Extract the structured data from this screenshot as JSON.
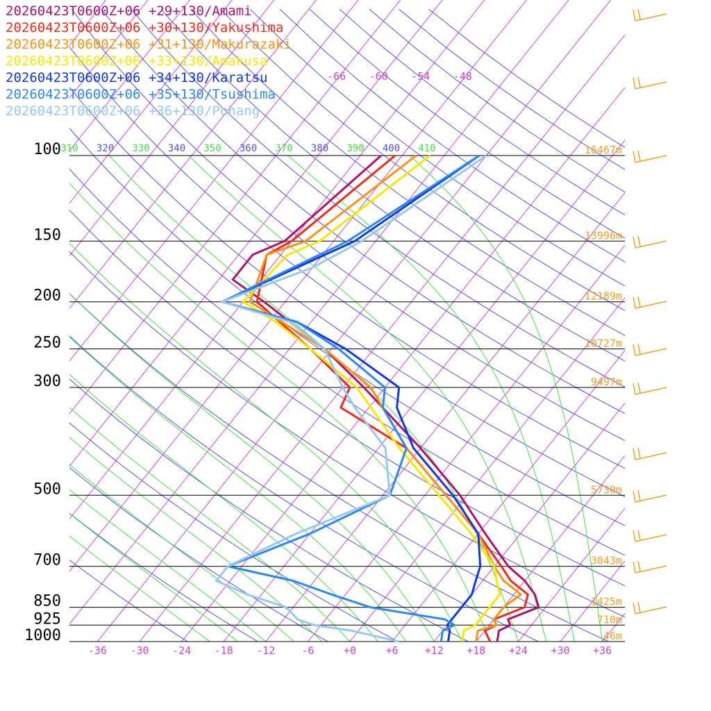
{
  "chart_data": {
    "type": "line",
    "title": "",
    "xlabel": "",
    "ylabel": "",
    "x_units": "°C",
    "y_units": "hPa",
    "y_scale": "log",
    "xlim": [
      -40,
      40
    ],
    "ylim": [
      1000,
      100
    ],
    "x_ticks": [
      "-36",
      "-30",
      "-24",
      "-18",
      "-12",
      "-6",
      "+0",
      "+6",
      "+12",
      "+18",
      "+24",
      "+30",
      "+36"
    ],
    "pressure_levels": [
      {
        "p": 100,
        "label": "100",
        "height": "16467m"
      },
      {
        "p": 150,
        "label": "150",
        "height": "13996m"
      },
      {
        "p": 200,
        "label": "200",
        "height": "12189m"
      },
      {
        "p": 250,
        "label": "250",
        "height": "10727m"
      },
      {
        "p": 300,
        "label": "300",
        "height": "9497m"
      },
      {
        "p": 500,
        "label": "500",
        "height": "5730m"
      },
      {
        "p": 700,
        "label": "700",
        "height": "3043m"
      },
      {
        "p": 850,
        "label": "850",
        "height": "1425m"
      },
      {
        "p": 925,
        "label": "925",
        "height": "710m"
      },
      {
        "p": 1000,
        "label": "1000",
        "height": "46m"
      }
    ],
    "isotherm_labels": [
      "-66",
      "-60",
      "-54",
      "-48"
    ],
    "theta_labels": [
      "310",
      "320",
      "330",
      "340",
      "350",
      "360",
      "370",
      "380",
      "390",
      "400",
      "410"
    ],
    "legend_placement": "top-left",
    "series": [
      {
        "name": "20260423T0600Z+06 +29+130/Amami",
        "color": "#b0106e",
        "points": [
          [
            1000,
            21
          ],
          [
            950,
            20
          ],
          [
            925,
            21
          ],
          [
            900,
            20
          ],
          [
            850,
            23
          ],
          [
            800,
            21
          ],
          [
            750,
            18
          ],
          [
            700,
            14
          ],
          [
            600,
            7
          ],
          [
            500,
            -1
          ],
          [
            400,
            -12
          ],
          [
            300,
            -27
          ],
          [
            250,
            -37
          ],
          [
            200,
            -51
          ],
          [
            180,
            -58
          ],
          [
            160,
            -58
          ],
          [
            150,
            -55
          ],
          [
            100,
            -51
          ]
        ]
      },
      {
        "name": "20260423T0600Z+06 +30+130/Yakushima",
        "color": "#f02a1a",
        "points": [
          [
            1000,
            20
          ],
          [
            950,
            18
          ],
          [
            925,
            19
          ],
          [
            900,
            18
          ],
          [
            850,
            21
          ],
          [
            800,
            20
          ],
          [
            750,
            16
          ],
          [
            700,
            13
          ],
          [
            600,
            6
          ],
          [
            500,
            -3
          ],
          [
            400,
            -14
          ],
          [
            330,
            -28
          ],
          [
            300,
            -29
          ],
          [
            250,
            -39
          ],
          [
            200,
            -52
          ],
          [
            160,
            -56
          ],
          [
            150,
            -54
          ],
          [
            100,
            -49
          ]
        ]
      },
      {
        "name": "20260423T0600Z+06 +31+130/Makurazaki",
        "color": "#ff9010",
        "points": [
          [
            1000,
            18
          ],
          [
            950,
            17
          ],
          [
            925,
            19
          ],
          [
            900,
            18
          ],
          [
            850,
            18
          ],
          [
            800,
            19
          ],
          [
            750,
            15
          ],
          [
            700,
            12
          ],
          [
            600,
            6
          ],
          [
            500,
            -3
          ],
          [
            400,
            -14
          ],
          [
            300,
            -26
          ],
          [
            250,
            -37
          ],
          [
            200,
            -53
          ],
          [
            160,
            -56
          ],
          [
            150,
            -52
          ],
          [
            100,
            -46
          ]
        ]
      },
      {
        "name": "20260423T0600Z+06 +33+130/Amakusa",
        "color": "#f8e800",
        "points": [
          [
            1000,
            16
          ],
          [
            950,
            15
          ],
          [
            925,
            16
          ],
          [
            900,
            16
          ],
          [
            850,
            16
          ],
          [
            800,
            16
          ],
          [
            750,
            14
          ],
          [
            700,
            12
          ],
          [
            600,
            5
          ],
          [
            500,
            -4
          ],
          [
            400,
            -15
          ],
          [
            300,
            -28
          ],
          [
            250,
            -39
          ],
          [
            220,
            -47
          ],
          [
            200,
            -54
          ],
          [
            160,
            -53
          ],
          [
            150,
            -50
          ],
          [
            100,
            -44
          ]
        ]
      },
      {
        "name": "20260423T0600Z+06 +34+130/Karatsu",
        "color": "#1038e0",
        "points": [
          [
            1000,
            14
          ],
          [
            950,
            13
          ],
          [
            925,
            12
          ],
          [
            900,
            12
          ],
          [
            850,
            12
          ],
          [
            800,
            12
          ],
          [
            750,
            11
          ],
          [
            700,
            10
          ],
          [
            600,
            6
          ],
          [
            500,
            -2
          ],
          [
            400,
            -13
          ],
          [
            330,
            -20
          ],
          [
            300,
            -22
          ],
          [
            250,
            -34
          ],
          [
            220,
            -44
          ],
          [
            200,
            -57
          ],
          [
            150,
            -45
          ],
          [
            100,
            -37
          ]
        ]
      },
      {
        "name": "20260423T0600Z+06 +35+130/Tsushima",
        "color": "#2a88f0",
        "points": [
          [
            1000,
            13
          ],
          [
            950,
            12
          ],
          [
            925,
            13
          ],
          [
            900,
            11
          ],
          [
            850,
            -1
          ],
          [
            800,
            -8
          ],
          [
            750,
            -15
          ],
          [
            700,
            -26
          ],
          [
            600,
            -18
          ],
          [
            500,
            -11
          ],
          [
            400,
            -14
          ],
          [
            330,
            -22
          ],
          [
            300,
            -24
          ],
          [
            250,
            -35
          ],
          [
            220,
            -44
          ],
          [
            200,
            -57
          ],
          [
            150,
            -46
          ],
          [
            100,
            -37
          ]
        ]
      },
      {
        "name": "20260423T0600Z+06 +36+130/Pohang",
        "color": "#98c8f0",
        "points": [
          [
            1000,
            7
          ],
          [
            950,
            -1
          ],
          [
            925,
            -7
          ],
          [
            900,
            -10
          ],
          [
            850,
            -13
          ],
          [
            800,
            -20
          ],
          [
            750,
            -26
          ],
          [
            700,
            -26
          ],
          [
            600,
            -20
          ],
          [
            500,
            -11
          ],
          [
            400,
            -17
          ],
          [
            330,
            -26
          ],
          [
            300,
            -30
          ],
          [
            250,
            -37
          ],
          [
            220,
            -45
          ],
          [
            200,
            -57
          ],
          [
            170,
            -48
          ],
          [
            150,
            -44
          ],
          [
            100,
            -36
          ]
        ]
      }
    ]
  },
  "colors": {
    "isotherm": "#d040d8",
    "dry_adiabat": "#5050e0",
    "moist_adiabat": "#40e040",
    "isobar": "#000000",
    "height_label": "#f0a020",
    "wind_barb": "#f0a020"
  }
}
